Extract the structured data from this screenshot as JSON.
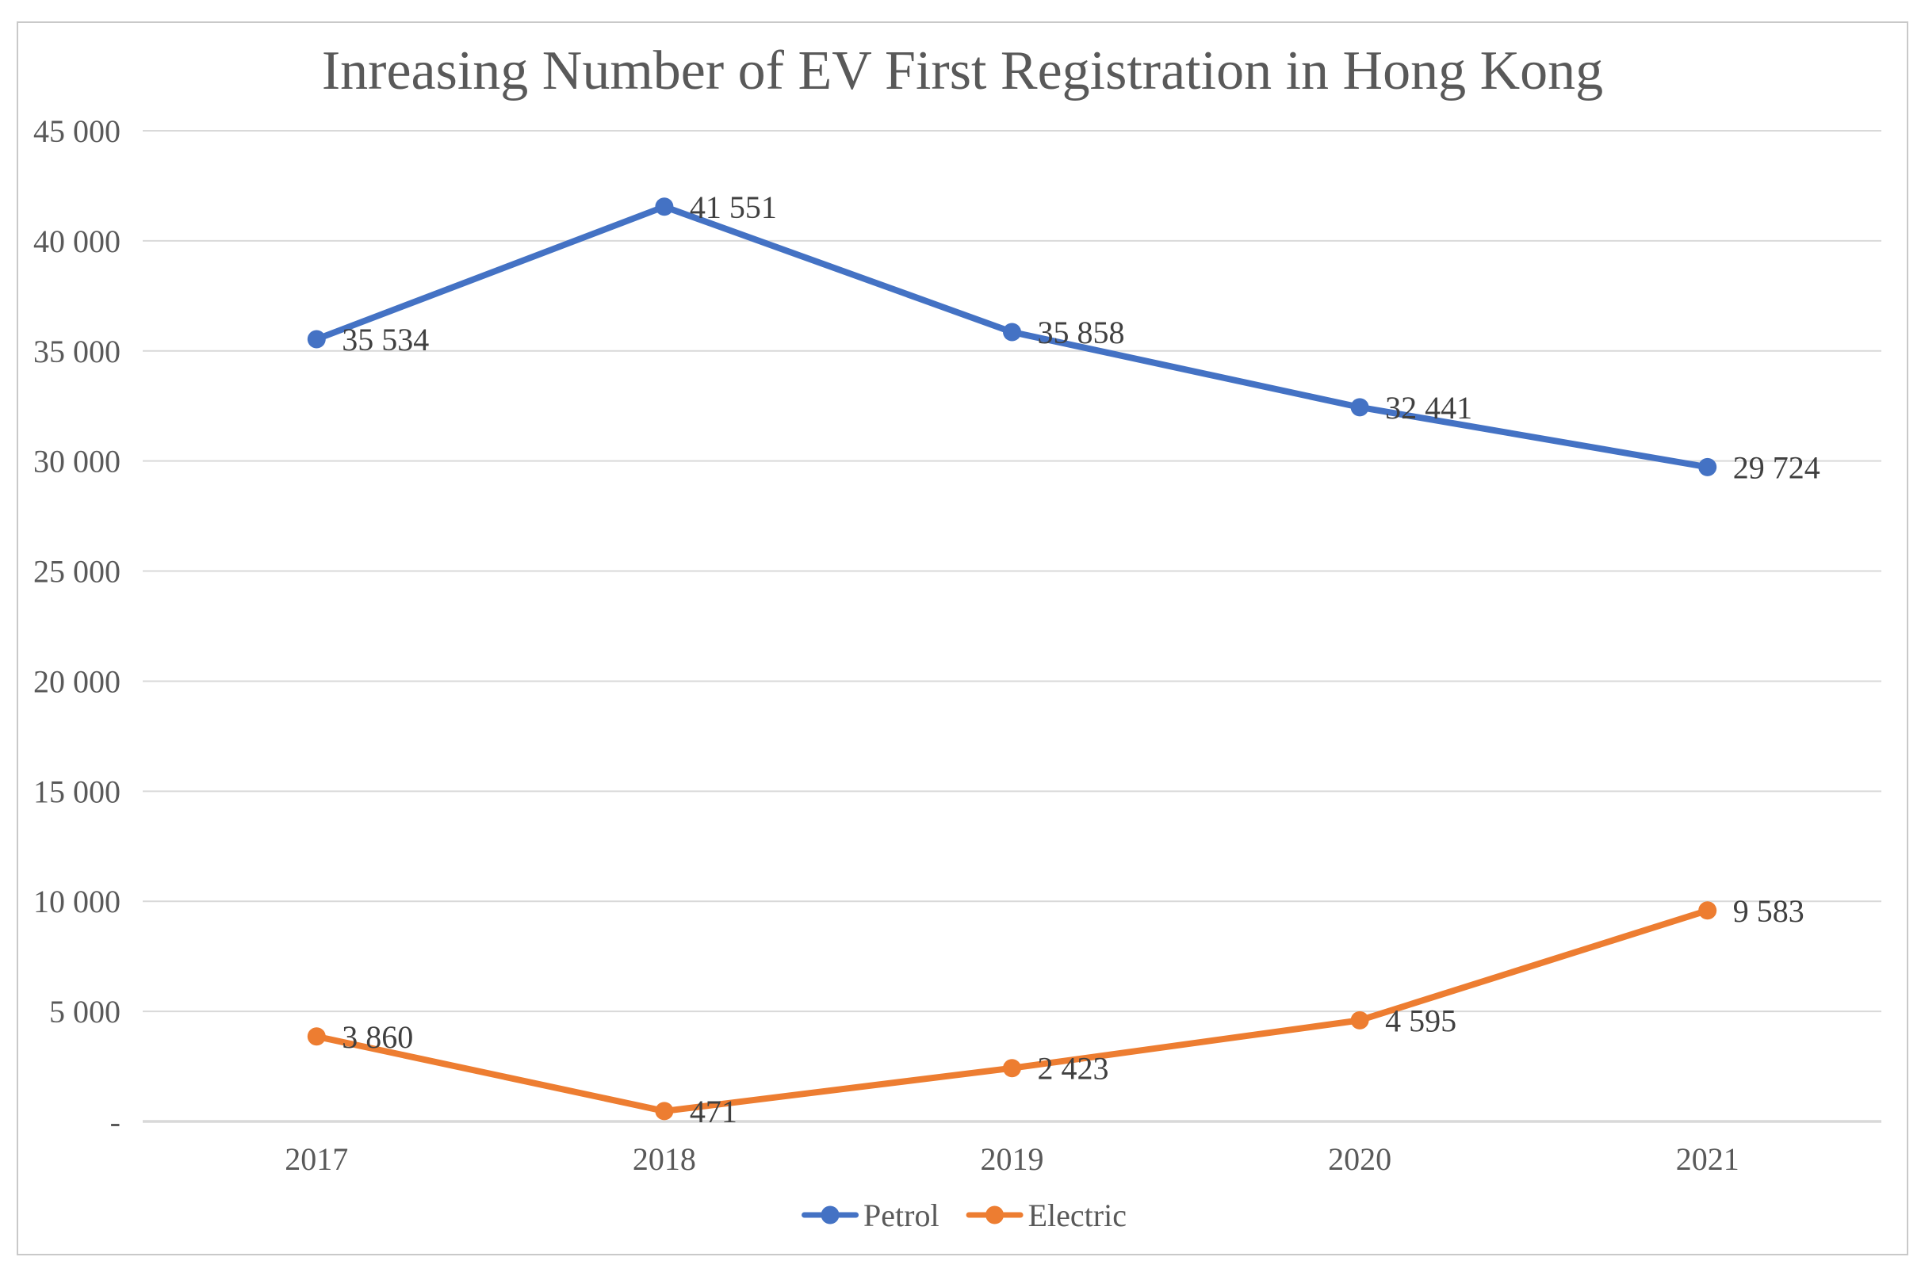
{
  "chart_data": {
    "type": "line",
    "title": "Inreasing Number of EV First Registration in Hong Kong",
    "categories": [
      "2017",
      "2018",
      "2019",
      "2020",
      "2021"
    ],
    "series": [
      {
        "name": "Petrol",
        "color": "#4472C4",
        "values": [
          35534,
          41551,
          35858,
          32441,
          29724
        ],
        "point_labels": [
          "35 534",
          "41 551",
          "35 858",
          "32 441",
          "29 724"
        ]
      },
      {
        "name": "Electric",
        "color": "#ED7D31",
        "values": [
          3860,
          471,
          2423,
          4595,
          9583
        ],
        "point_labels": [
          "3 860",
          "471",
          "2 423",
          "4 595",
          "9 583"
        ]
      }
    ],
    "y_axis": {
      "min": 0,
      "max": 45000,
      "step": 5000,
      "tick_labels": [
        "-",
        "5 000",
        "10 000",
        "15 000",
        "20 000",
        "25 000",
        "30 000",
        "35 000",
        "40 000",
        "45 000"
      ]
    },
    "x_axis": {
      "tick_labels": [
        "2017",
        "2018",
        "2019",
        "2020",
        "2021"
      ]
    },
    "grid": true,
    "legend_position": "bottom",
    "legend_entries": [
      "Petrol",
      "Electric"
    ],
    "colors": {
      "gridline": "#d9d9d9",
      "axis_line": "#d9d9d9",
      "axis_text": "#595959",
      "data_label_text": "#404040",
      "title_text": "#595959",
      "legend_text": "#595959",
      "border": "#c9c9c9",
      "background": "#ffffff"
    }
  }
}
